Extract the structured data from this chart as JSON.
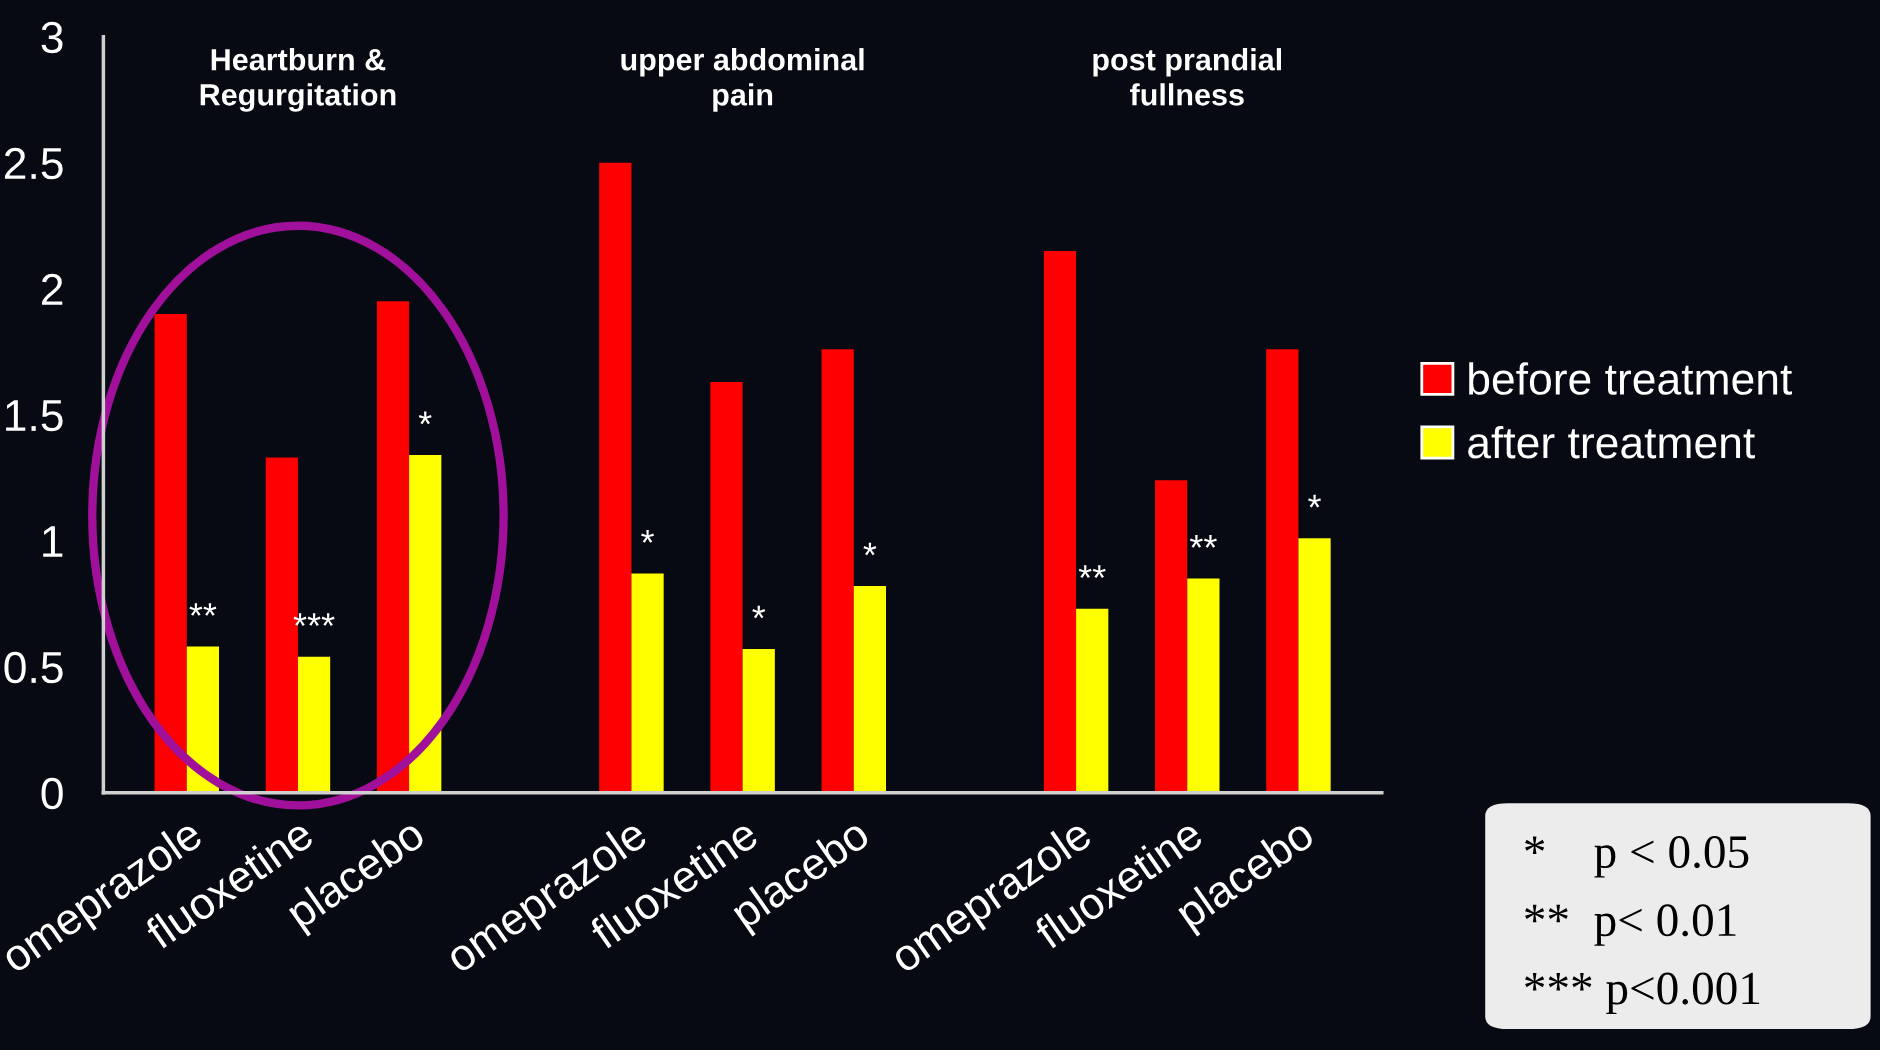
{
  "chart_data": {
    "type": "bar",
    "categories": [
      "omeprazole",
      "fluoxetine",
      "placebo",
      "omeprazole",
      "fluoxetine",
      "placebo",
      "omeprazole",
      "fluoxetine",
      "placebo"
    ],
    "series": [
      {
        "name": "before treatment",
        "color": "#ff0000",
        "values": [
          1.9,
          1.33,
          1.95,
          2.5,
          1.63,
          1.76,
          2.15,
          1.24,
          1.76
        ]
      },
      {
        "name": "after treatment",
        "color": "#ffff00",
        "values": [
          0.58,
          0.54,
          1.34,
          0.87,
          0.57,
          0.82,
          0.73,
          0.85,
          1.01
        ],
        "value_labels": [
          "**",
          "***",
          "*",
          "*",
          "*",
          "*",
          "**",
          "**",
          "*"
        ]
      }
    ],
    "ylim": [
      0,
      3
    ],
    "yticks": [
      0,
      0.5,
      1,
      1.5,
      2,
      2.5,
      3
    ],
    "grid": false,
    "legend": "right",
    "annotations": [
      "Heartburn &\nRegurgitation",
      "upper abdominal\npain",
      "post prandial\nfullness",
      "*    p < 0.05",
      "**  p< 0.01",
      "*** p<0.001"
    ]
  }
}
